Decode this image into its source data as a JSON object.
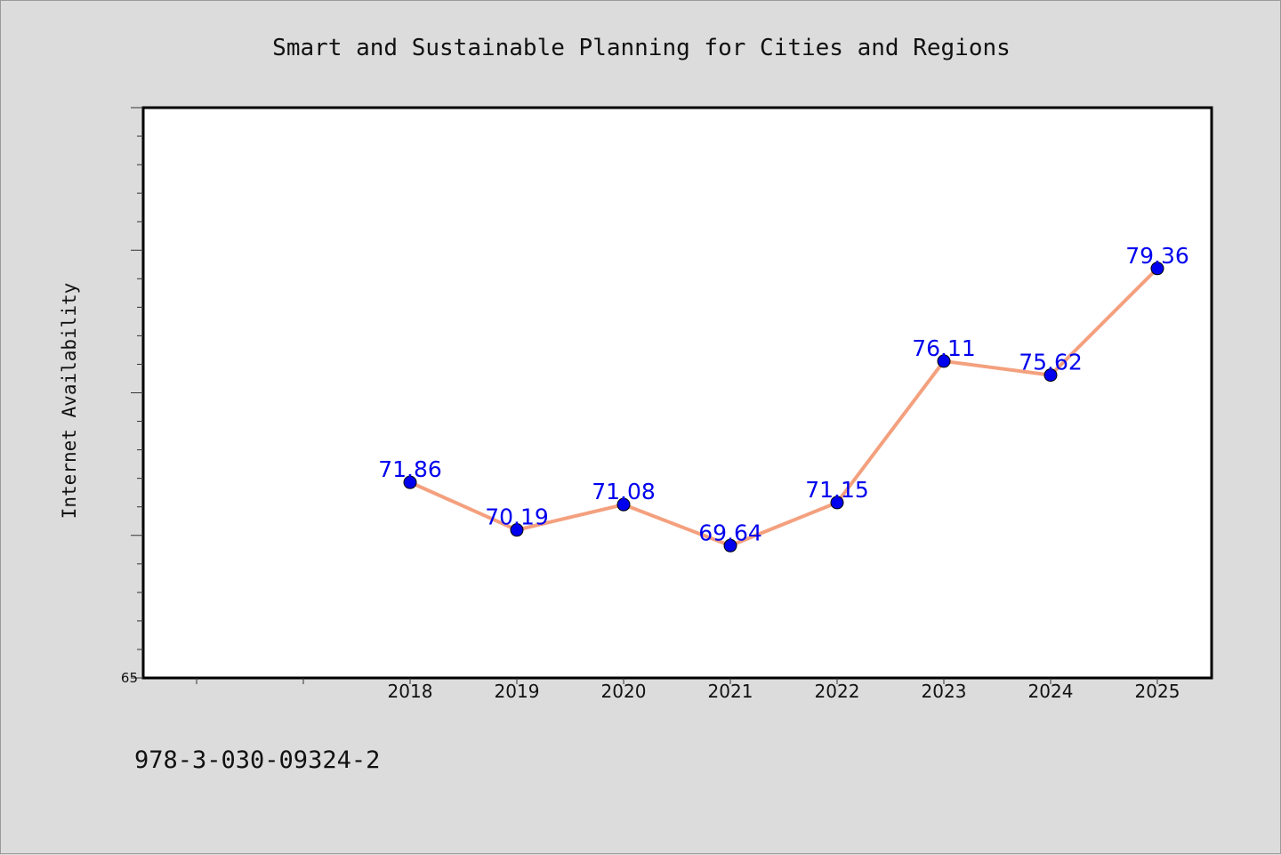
{
  "colors": {
    "background": "#dcdcdc",
    "plot_background": "#ffffff",
    "line": "#f4a07e",
    "marker": "#0000ee",
    "data_label": "#0000ee",
    "axis": "#000000"
  },
  "footer": {
    "isbn": "978-3-030-09324-2"
  },
  "chart_data": {
    "type": "line",
    "title": "Smart and Sustainable Planning for Cities and Regions",
    "xlabel": "",
    "ylabel": "Internet Availability",
    "categories": [
      "2018",
      "2019",
      "2020",
      "2021",
      "2022",
      "2023",
      "2024",
      "2025"
    ],
    "series": [
      {
        "values": [
          71.86,
          70.19,
          71.08,
          69.64,
          71.15,
          76.11,
          75.62,
          79.36
        ]
      }
    ],
    "data_labels": [
      "71.86",
      "70.19",
      "71.08",
      "69.64",
      "71.15",
      "76.11",
      "75.62",
      "79.36"
    ],
    "ylim": [
      65,
      85
    ],
    "y_tick_labels": [
      "65"
    ],
    "y_major_step": 5,
    "y_minor_step": 1,
    "grid": false,
    "legend": "none"
  }
}
